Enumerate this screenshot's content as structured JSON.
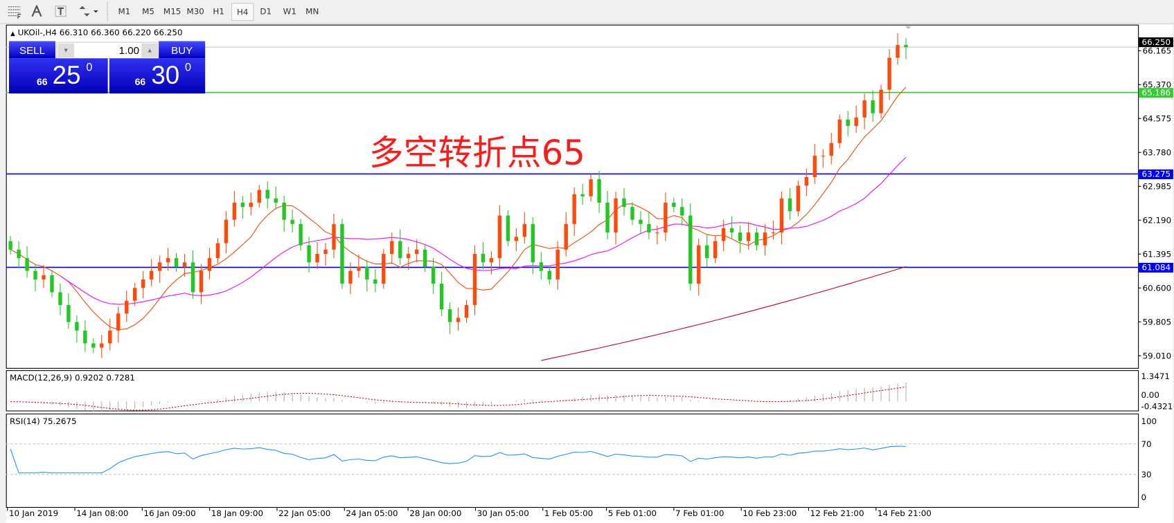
{
  "toolbar": {
    "timeframes": [
      "M1",
      "M5",
      "M15",
      "M30",
      "H1",
      "H4",
      "D1",
      "W1",
      "MN"
    ],
    "active": "H4",
    "icons": [
      "fibonacci-icon",
      "text-icon",
      "text-label-icon",
      "arrows-icon"
    ]
  },
  "chart": {
    "symbol_line": "UKOil-,H4  66.310 66.360 66.220 66.250",
    "annotation": "多空转折点65"
  },
  "trade_panel": {
    "sell_label": "SELL",
    "buy_label": "BUY",
    "volume": "1.00",
    "sell_big": "66",
    "sell_main": "25",
    "sell_sup": "0",
    "buy_big": "66",
    "buy_main": "30",
    "buy_sup": "0"
  },
  "colors": {
    "bull": "#ff4a0a",
    "bear": "#22c822",
    "ma_fast": "#ff4500",
    "ma_mid": "#ff00ff",
    "ma_long": "#c8001e",
    "green_line": "#32cd32",
    "blue_line": "#0000ff"
  },
  "chart_data": {
    "type": "candlestick",
    "price_ticks": [
      "66.165",
      "65.370",
      "64.575",
      "63.780",
      "62.985",
      "62.190",
      "61.395",
      "60.600",
      "59.805",
      "59.010"
    ],
    "horizontal_lines": [
      {
        "price": 65.186,
        "label": "65.186",
        "color": "#32cd32"
      },
      {
        "price": 63.275,
        "label": "63.275",
        "color": "#0000ff"
      },
      {
        "price": 61.084,
        "label": "61.084",
        "color": "#0000ff"
      }
    ],
    "current_price": {
      "price": 66.25,
      "label": "66.250"
    },
    "time_labels": [
      "10 Jan 2019",
      "14 Jan 08:00",
      "16 Jan 09:00",
      "18 Jan 09:00",
      "22 Jan 05:00",
      "24 Jan 05:00",
      "28 Jan 00:00",
      "30 Jan 05:00",
      "1 Feb 05:00",
      "5 Feb 01:00",
      "7 Feb 01:00",
      "10 Feb 23:00",
      "12 Feb 21:00",
      "14 Feb 21:00"
    ],
    "first_open": 61.7,
    "close": [
      61.5,
      61.3,
      61.0,
      60.8,
      60.9,
      60.5,
      60.2,
      59.8,
      59.6,
      59.3,
      59.2,
      59.3,
      59.6,
      60.0,
      60.3,
      60.6,
      60.8,
      61.0,
      61.2,
      61.3,
      61.1,
      61.2,
      60.5,
      61.0,
      61.3,
      61.65,
      62.2,
      62.6,
      62.5,
      62.6,
      62.9,
      62.7,
      62.6,
      62.2,
      62.1,
      61.6,
      61.2,
      61.4,
      61.5,
      62.1,
      60.7,
      61.0,
      61.1,
      60.8,
      60.7,
      61.4,
      61.7,
      61.3,
      61.4,
      61.5,
      61.1,
      60.7,
      60.1,
      59.8,
      59.9,
      60.2,
      61.4,
      61.2,
      61.3,
      62.3,
      61.7,
      61.8,
      62.1,
      61.2,
      61.0,
      60.8,
      61.5,
      62.1,
      62.8,
      62.75,
      63.15,
      62.6,
      61.9,
      62.7,
      62.5,
      62.2,
      62.1,
      61.9,
      61.9,
      62.6,
      62.5,
      62.3,
      60.7,
      61.6,
      61.3,
      61.7,
      62.0,
      61.9,
      61.7,
      61.9,
      61.6,
      61.9,
      61.9,
      62.7,
      62.4,
      63.0,
      63.2,
      63.7,
      63.7,
      64.0,
      64.55,
      64.4,
      64.6,
      65.0,
      64.7,
      65.25,
      66.0,
      66.3,
      66.25
    ],
    "ma_long": {
      "start_index": 64,
      "start": 58.9,
      "end": 61.1
    },
    "macd": {
      "label": "MACD(12,26,9) 0.9202 0.7281",
      "ticks": [
        "1.3471",
        "0.00",
        "-0.4321"
      ]
    },
    "rsi": {
      "label": "RSI(14) 75.2675",
      "ticks": [
        "100",
        "70",
        "30",
        "0"
      ],
      "levels": [
        70,
        30
      ]
    }
  }
}
